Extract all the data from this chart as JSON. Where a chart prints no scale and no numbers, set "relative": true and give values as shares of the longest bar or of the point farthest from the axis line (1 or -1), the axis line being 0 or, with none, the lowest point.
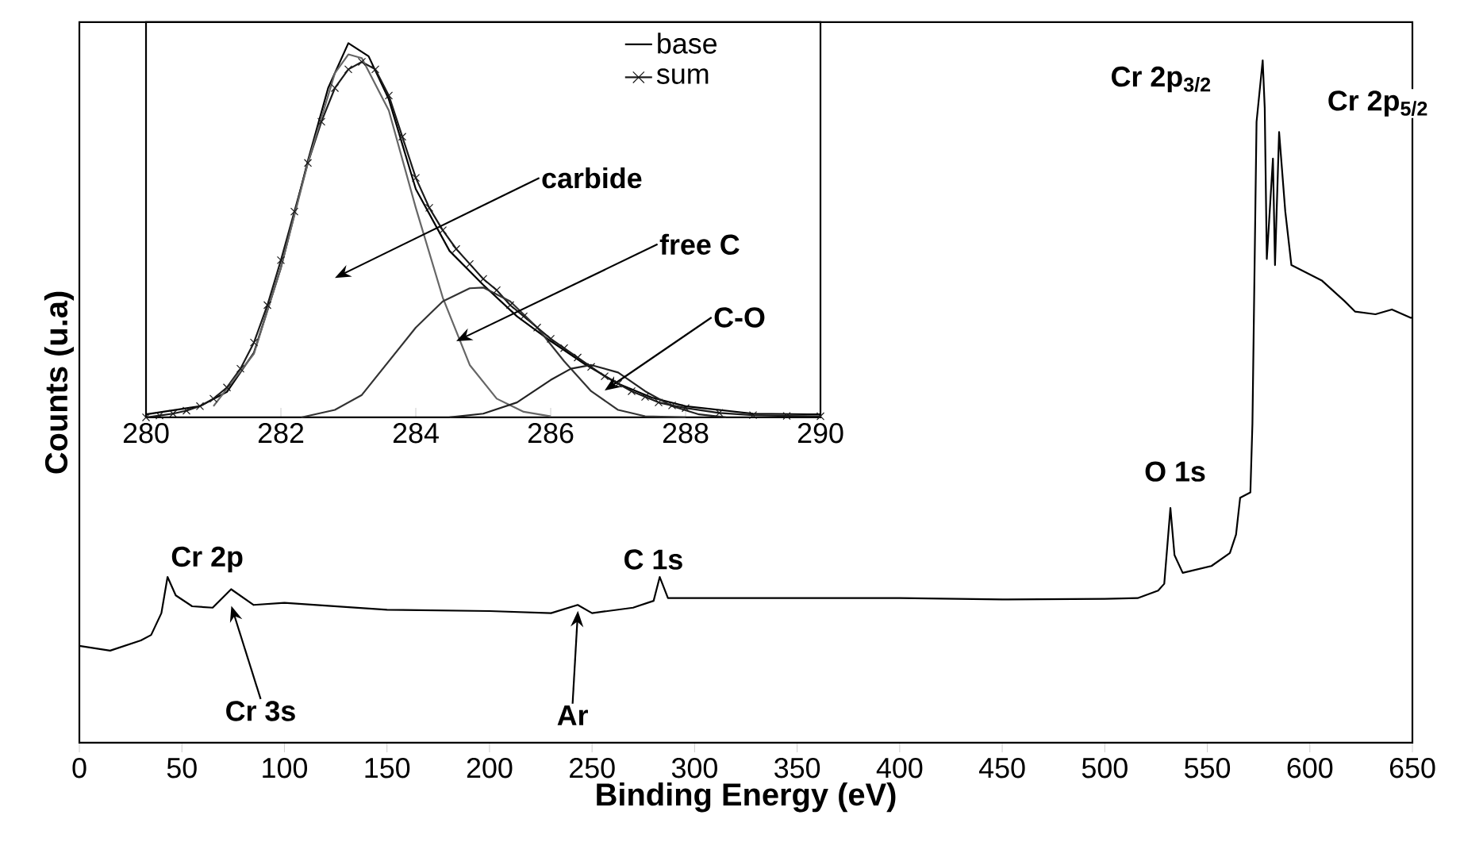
{
  "chart_data": [
    {
      "type": "line",
      "relative": true,
      "xlabel": "Binding Energy (eV)",
      "ylabel": "Counts (u.a)",
      "xlim": [
        0,
        650
      ],
      "xticks": [
        0,
        50,
        100,
        150,
        200,
        250,
        300,
        350,
        400,
        450,
        500,
        550,
        600,
        650
      ],
      "series": [
        {
          "color": "#000000",
          "x": [
            0,
            15,
            30,
            35,
            40,
            43,
            47,
            55,
            65,
            74,
            85,
            100,
            150,
            200,
            230,
            243,
            250,
            270,
            280,
            283,
            287,
            300,
            350,
            400,
            450,
            500,
            516,
            526,
            529,
            532,
            534,
            538,
            552,
            561,
            564,
            566,
            571,
            572,
            574,
            577,
            578,
            579,
            582,
            583,
            585,
            588,
            591,
            606,
            617,
            622,
            632,
            640,
            649,
            650
          ],
          "values": [
            0.142,
            0.135,
            0.15,
            0.158,
            0.19,
            0.243,
            0.216,
            0.2,
            0.198,
            0.225,
            0.202,
            0.205,
            0.195,
            0.193,
            0.19,
            0.202,
            0.19,
            0.198,
            0.208,
            0.243,
            0.212,
            0.212,
            0.212,
            0.212,
            0.21,
            0.211,
            0.212,
            0.223,
            0.233,
            0.344,
            0.275,
            0.249,
            0.259,
            0.278,
            0.305,
            0.359,
            0.367,
            0.468,
            0.91,
            1.0,
            0.93,
            0.709,
            0.856,
            0.7,
            0.895,
            0.779,
            0.7,
            0.677,
            0.647,
            0.632,
            0.628,
            0.635,
            0.623,
            0.623
          ]
        }
      ],
      "annotations": [
        {
          "text": "Cr 2p",
          "x": 43,
          "y": 0.243
        },
        "Cr 3s",
        "Ar",
        {
          "text": "C 1s",
          "x": 283,
          "y": 0.243
        },
        {
          "text": "O 1s",
          "x": 532,
          "y": 0.344
        },
        {
          "text": "Cr 2p$_{3/2}$",
          "x": 577,
          "y": 1.0
        },
        {
          "text": "Cr 2p$_{5/2}$",
          "x": 586,
          "y": 0.895
        }
      ]
    },
    {
      "type": "line",
      "relative": true,
      "xlim": [
        280,
        290
      ],
      "xticks": [
        280,
        282,
        284,
        286,
        288,
        290
      ],
      "legend": "top right",
      "series": [
        {
          "name": "base",
          "color": "#000000",
          "x": [
            280.0,
            280.8,
            281.2,
            281.6,
            282.0,
            282.4,
            282.7,
            283.0,
            283.3,
            283.6,
            284.0,
            284.5,
            285.0,
            285.5,
            286.0,
            286.5,
            287.0,
            287.5,
            288.0,
            289.0,
            290.0
          ],
          "values": [
            0.008,
            0.03,
            0.068,
            0.173,
            0.4,
            0.686,
            0.88,
            1.0,
            0.965,
            0.85,
            0.61,
            0.445,
            0.354,
            0.27,
            0.204,
            0.143,
            0.09,
            0.053,
            0.03,
            0.01,
            0.008
          ]
        },
        {
          "name": "sum",
          "color": "#1a1a1a",
          "marker": "cross",
          "x": [
            280.0,
            280.2,
            280.4,
            280.6,
            280.8,
            281.0,
            281.2,
            281.4,
            281.6,
            281.8,
            282.0,
            282.2,
            282.4,
            282.6,
            282.8,
            283.0,
            283.2,
            283.4,
            283.6,
            283.8,
            284.0,
            284.2,
            284.4,
            284.6,
            284.8,
            285.0,
            285.2,
            285.4,
            285.6,
            285.8,
            286.0,
            286.2,
            286.4,
            286.6,
            286.8,
            287.0,
            287.2,
            287.4,
            287.6,
            287.8,
            288.0,
            288.5,
            289.0,
            289.5,
            290.0
          ],
          "values": [
            0.0,
            0.005,
            0.01,
            0.018,
            0.03,
            0.05,
            0.08,
            0.13,
            0.2,
            0.3,
            0.42,
            0.55,
            0.68,
            0.79,
            0.88,
            0.93,
            0.95,
            0.93,
            0.86,
            0.75,
            0.64,
            0.56,
            0.5,
            0.45,
            0.41,
            0.37,
            0.34,
            0.3,
            0.27,
            0.24,
            0.21,
            0.185,
            0.16,
            0.135,
            0.11,
            0.09,
            0.07,
            0.055,
            0.04,
            0.032,
            0.025,
            0.012,
            0.006,
            0.004,
            0.003
          ]
        },
        {
          "color": "#666666",
          "x": [
            281.0,
            281.6,
            282.0,
            282.4,
            282.8,
            283.0,
            283.2,
            283.6,
            284.0,
            284.4,
            284.8,
            285.2,
            285.6,
            286.0
          ],
          "values": [
            0.03,
            0.17,
            0.4,
            0.68,
            0.92,
            0.97,
            0.96,
            0.82,
            0.56,
            0.32,
            0.14,
            0.05,
            0.015,
            0.003
          ]
        },
        {
          "color": "#333333",
          "x": [
            282.3,
            282.8,
            283.2,
            283.6,
            284.0,
            284.4,
            284.8,
            285.0,
            285.4,
            285.8,
            286.2,
            286.6,
            287.0,
            287.4,
            288.0
          ],
          "values": [
            0.0,
            0.02,
            0.06,
            0.15,
            0.24,
            0.31,
            0.345,
            0.347,
            0.31,
            0.24,
            0.15,
            0.07,
            0.02,
            0.003,
            0.0
          ]
        },
        {
          "color": "#222222",
          "x": [
            284.5,
            285.0,
            285.5,
            286.0,
            286.3,
            286.6,
            287.0,
            287.4,
            287.8,
            288.2,
            288.6
          ],
          "values": [
            0.0,
            0.01,
            0.04,
            0.1,
            0.13,
            0.14,
            0.12,
            0.07,
            0.03,
            0.008,
            0.0
          ]
        }
      ],
      "annotations": [
        "carbide",
        "free C",
        "C-O"
      ]
    }
  ]
}
